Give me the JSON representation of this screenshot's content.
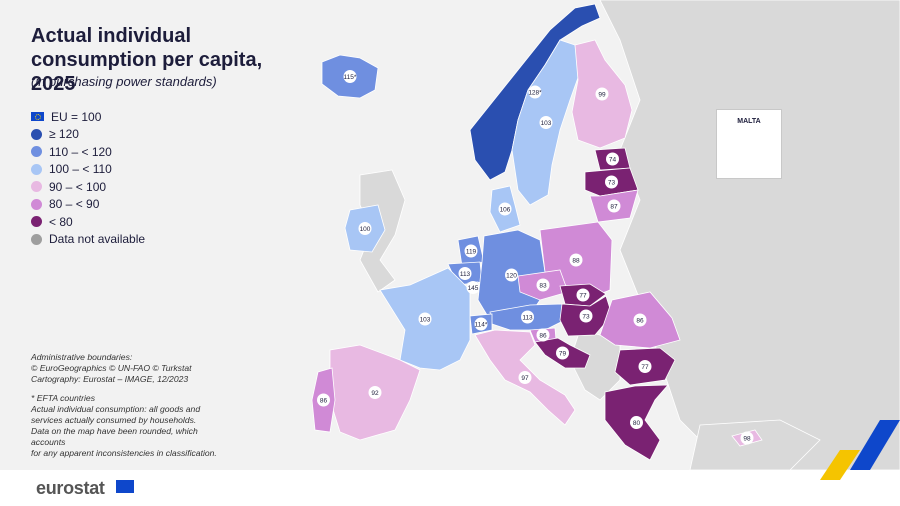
{
  "title": "Actual individual consumption per capita, 2025",
  "subtitle": "(in purchasing power standards)",
  "legend": [
    {
      "label": "EU = 100",
      "color": "#0e47cb",
      "kind": "flag"
    },
    {
      "label": "≥ 120",
      "color": "#2a4fb0"
    },
    {
      "label": "110 – < 120",
      "color": "#6f8fe0"
    },
    {
      "label": "100 – < 110",
      "color": "#a8c6f5"
    },
    {
      "label": "90 – < 100",
      "color": "#e8b9e2"
    },
    {
      "label": "80 – < 90",
      "color": "#d08ad6"
    },
    {
      "label": "< 80",
      "color": "#7a2272"
    },
    {
      "label": "Data not available",
      "color": "#9e9e9e"
    }
  ],
  "notes": {
    "admin1": "Administrative boundaries:",
    "admin2": "© EuroGeographics © UN-FAO © Turkstat",
    "admin3": "Cartography: Eurostat – IMAGE, 12/2023",
    "efta": "*  EFTA countries",
    "def1": "Actual individual consumption: all goods and",
    "def2": "services actually consumed by households.",
    "round1": "Data on the map have been rounded, which accounts",
    "round2": "for any apparent inconsistencies in classification."
  },
  "inset": {
    "title": "MALTA"
  },
  "brand": "eurostat",
  "colors": {
    "sea": "#f2f2f2",
    "noneu": "#d9d9d9",
    "border": "#ffffff",
    "label_bg": "#ffffff"
  },
  "countries": [
    {
      "name": "Iceland",
      "value": "115",
      "asterisk": true,
      "color": "#6f8fe0"
    },
    {
      "name": "Norway",
      "value": "128",
      "asterisk": true,
      "color": "#2a4fb0"
    },
    {
      "name": "Sweden",
      "value": "103",
      "color": "#a8c6f5"
    },
    {
      "name": "Finland",
      "value": "99",
      "color": "#e8b9e2"
    },
    {
      "name": "Estonia",
      "value": "74",
      "color": "#7a2272"
    },
    {
      "name": "Latvia",
      "value": "73",
      "color": "#7a2272"
    },
    {
      "name": "Lithuania",
      "value": "87",
      "color": "#d08ad6"
    },
    {
      "name": "Denmark",
      "value": "106",
      "color": "#a8c6f5"
    },
    {
      "name": "Ireland",
      "value": "100",
      "color": "#a8c6f5"
    },
    {
      "name": "Netherlands",
      "value": "119",
      "color": "#6f8fe0"
    },
    {
      "name": "Belgium",
      "value": "113",
      "color": "#6f8fe0"
    },
    {
      "name": "Luxembourg",
      "value": "145",
      "color": "#2a4fb0"
    },
    {
      "name": "Germany",
      "value": "120",
      "color": "#6f8fe0"
    },
    {
      "name": "Poland",
      "value": "88",
      "color": "#d08ad6"
    },
    {
      "name": "Czechia",
      "value": "83",
      "color": "#d08ad6"
    },
    {
      "name": "Slovakia",
      "value": "77",
      "color": "#7a2272"
    },
    {
      "name": "Austria",
      "value": "113",
      "color": "#6f8fe0"
    },
    {
      "name": "Switzerland",
      "value": "114",
      "asterisk": true,
      "color": "#6f8fe0"
    },
    {
      "name": "Hungary",
      "value": "73",
      "color": "#7a2272"
    },
    {
      "name": "Slovenia",
      "value": "86",
      "color": "#d08ad6"
    },
    {
      "name": "Croatia",
      "value": "79",
      "color": "#7a2272"
    },
    {
      "name": "Romania",
      "value": "86",
      "color": "#d08ad6"
    },
    {
      "name": "Bulgaria",
      "value": "77",
      "color": "#7a2272"
    },
    {
      "name": "Greece",
      "value": "80",
      "color": "#7a2272"
    },
    {
      "name": "France",
      "value": "103",
      "color": "#a8c6f5"
    },
    {
      "name": "Italy",
      "value": "97",
      "color": "#e8b9e2"
    },
    {
      "name": "Spain",
      "value": "92",
      "color": "#e8b9e2"
    },
    {
      "name": "Portugal",
      "value": "86",
      "color": "#d08ad6"
    },
    {
      "name": "Cyprus",
      "value": "98",
      "color": "#e8b9e2"
    },
    {
      "name": "Malta",
      "value": "88",
      "color": "#d08ad6"
    }
  ]
}
